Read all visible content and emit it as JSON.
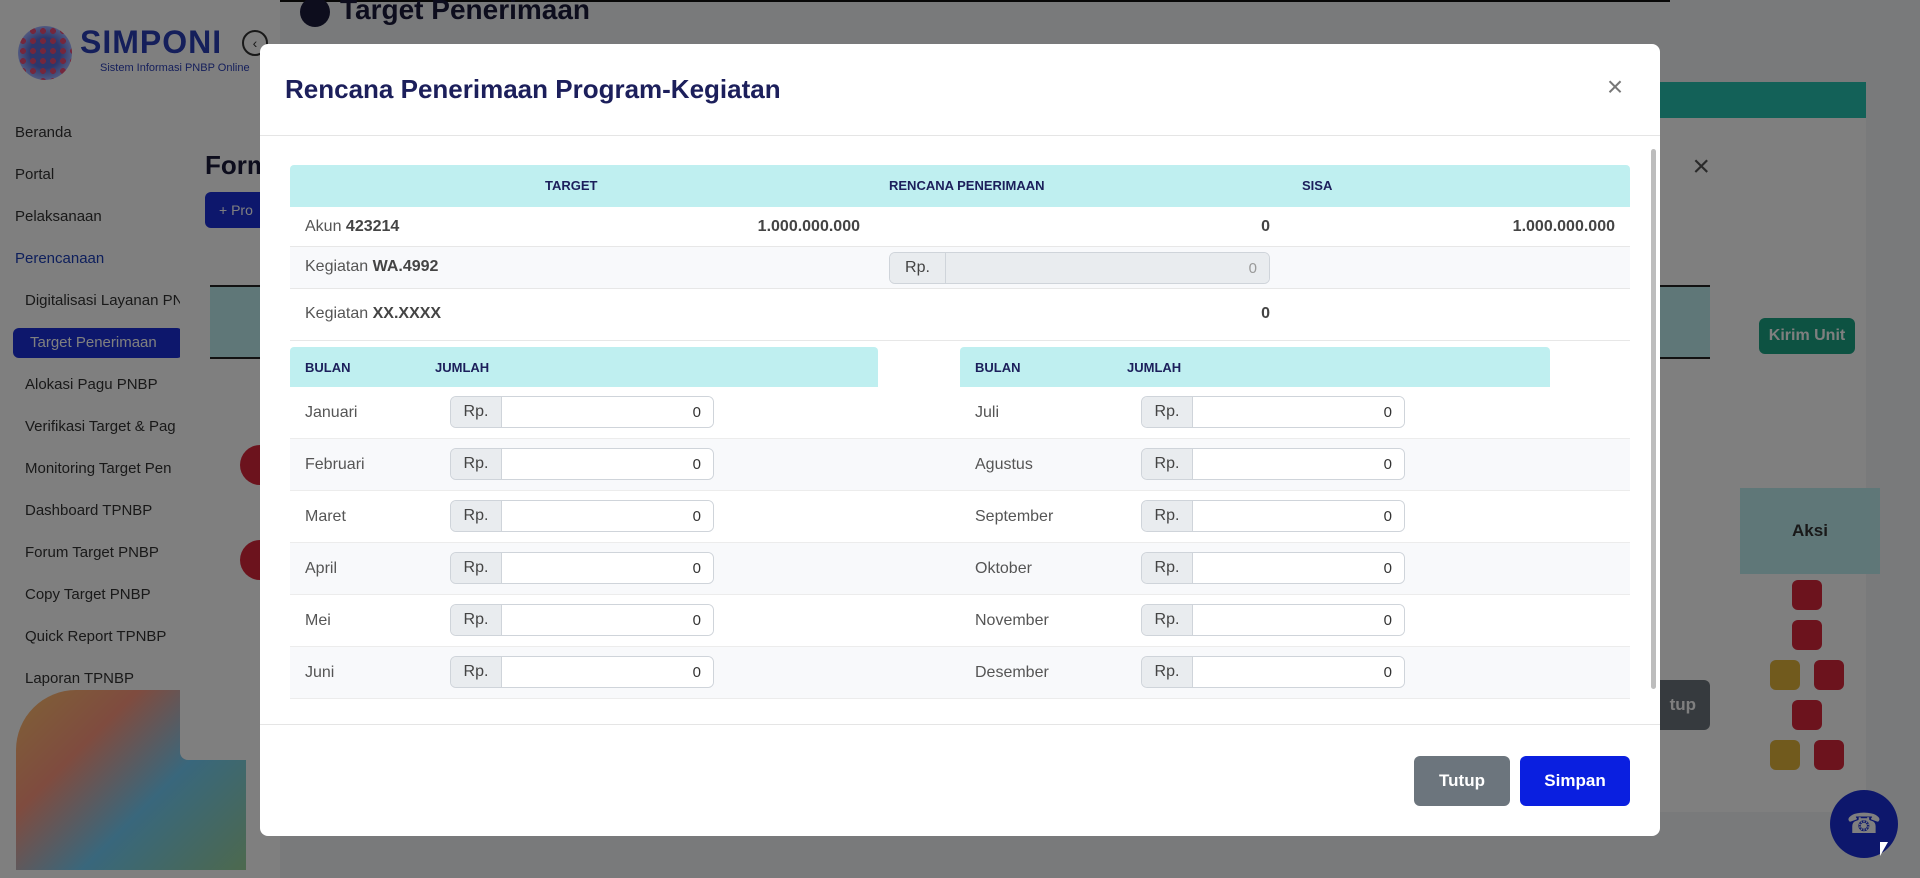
{
  "sidebar": {
    "logo_title": "SIMPONI",
    "logo_subtitle": "Sistem Informasi PNBP Online",
    "items": [
      {
        "label": "Beranda"
      },
      {
        "label": "Portal"
      },
      {
        "label": "Pelaksanaan"
      },
      {
        "label": "Perencanaan"
      },
      {
        "label": "Digitalisasi Layanan PN"
      },
      {
        "label": "Target Penerimaan"
      },
      {
        "label": "Alokasi Pagu PNBP"
      },
      {
        "label": "Verifikasi Target & Pag"
      },
      {
        "label": "Monitoring Target Pen"
      },
      {
        "label": "Dashboard TPNBP"
      },
      {
        "label": "Forum Target PNBP"
      },
      {
        "label": "Copy Target PNBP"
      },
      {
        "label": "Quick Report TPNBP"
      },
      {
        "label": "Laporan TPNBP"
      }
    ]
  },
  "background": {
    "page_title": "Target Penerimaan",
    "modal_title": "Form",
    "modal_button": "+ Pro",
    "kirim_unit": "Kirim Unit",
    "aksi": "Aksi",
    "tutup_partial": "tup"
  },
  "modal": {
    "title": "Rencana Penerimaan Program-Kegiatan",
    "summary": {
      "headers": {
        "target": "TARGET",
        "rencana": "RENCANA PENERIMAAN",
        "sisa": "SISA"
      },
      "akun": {
        "label": "Akun",
        "code": "423214",
        "target": "1.000.000.000",
        "rencana": "0",
        "sisa": "1.000.000.000"
      },
      "kegiatan1": {
        "label": "Kegiatan",
        "code": "WA.4992",
        "prefix": "Rp.",
        "value": "0"
      },
      "kegiatan2": {
        "label": "Kegiatan",
        "code": "XX.XXXX",
        "value": "0"
      }
    },
    "months_header": {
      "bulan": "BULAN",
      "jumlah": "JUMLAH"
    },
    "currency_prefix": "Rp.",
    "months_left": [
      {
        "name": "Januari",
        "value": "0"
      },
      {
        "name": "Februari",
        "value": "0"
      },
      {
        "name": "Maret",
        "value": "0"
      },
      {
        "name": "April",
        "value": "0"
      },
      {
        "name": "Mei",
        "value": "0"
      },
      {
        "name": "Juni",
        "value": "0"
      }
    ],
    "months_right": [
      {
        "name": "Juli",
        "value": "0"
      },
      {
        "name": "Agustus",
        "value": "0"
      },
      {
        "name": "September",
        "value": "0"
      },
      {
        "name": "Oktober",
        "value": "0"
      },
      {
        "name": "November",
        "value": "0"
      },
      {
        "name": "Desember",
        "value": "0"
      }
    ],
    "buttons": {
      "tutup": "Tutup",
      "simpan": "Simpan"
    }
  },
  "colors": {
    "accent": "#0a1fe0",
    "table_header": "#bfeff0",
    "secondary_button": "#6c757d"
  }
}
